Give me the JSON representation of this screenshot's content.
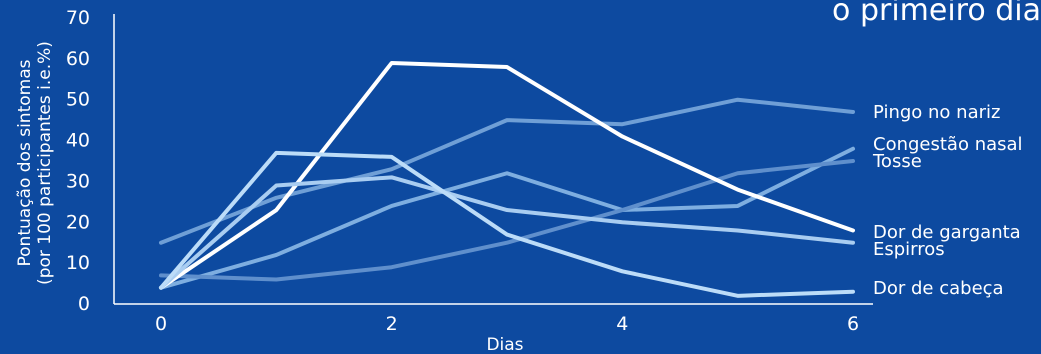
{
  "chart_data": {
    "type": "line",
    "title": "o primeiro dia",
    "xlabel": "Dias",
    "ylabel_line1": "Pontuação dos sintomas",
    "ylabel_line2": "(por 100 participantes i.e.%)",
    "xlim": [
      -0.3,
      6.3
    ],
    "ylim": [
      0,
      70
    ],
    "xticks": [
      0,
      2,
      4,
      6
    ],
    "yticks": [
      0,
      10,
      20,
      30,
      40,
      50,
      60,
      70
    ],
    "x": [
      0,
      1,
      2,
      3,
      4,
      5,
      6
    ],
    "series": [
      {
        "name": "Pingo no nariz",
        "color": "#6f9fd6",
        "values": [
          15,
          26,
          33,
          45,
          44,
          50,
          47
        ]
      },
      {
        "name": "Congestão nasal",
        "color": "#7eaee0",
        "values": [
          4,
          12,
          24,
          32,
          23,
          24,
          38
        ]
      },
      {
        "name": "Tosse",
        "color": "#5f8fcc",
        "values": [
          7,
          6,
          9,
          15,
          23,
          32,
          35
        ]
      },
      {
        "name": "Dor de garganta",
        "color": "#ffffff",
        "values": [
          4,
          23,
          59,
          58,
          41,
          28,
          18
        ]
      },
      {
        "name": "Espirros",
        "color": "#a9cdf1",
        "values": [
          4,
          29,
          31,
          23,
          20,
          18,
          15
        ]
      },
      {
        "name": "Dor de cabeça",
        "color": "#bcdcf8",
        "values": [
          4,
          37,
          36,
          17,
          8,
          2,
          3
        ]
      }
    ],
    "grid": false,
    "legend": "labels at right end of each line"
  }
}
